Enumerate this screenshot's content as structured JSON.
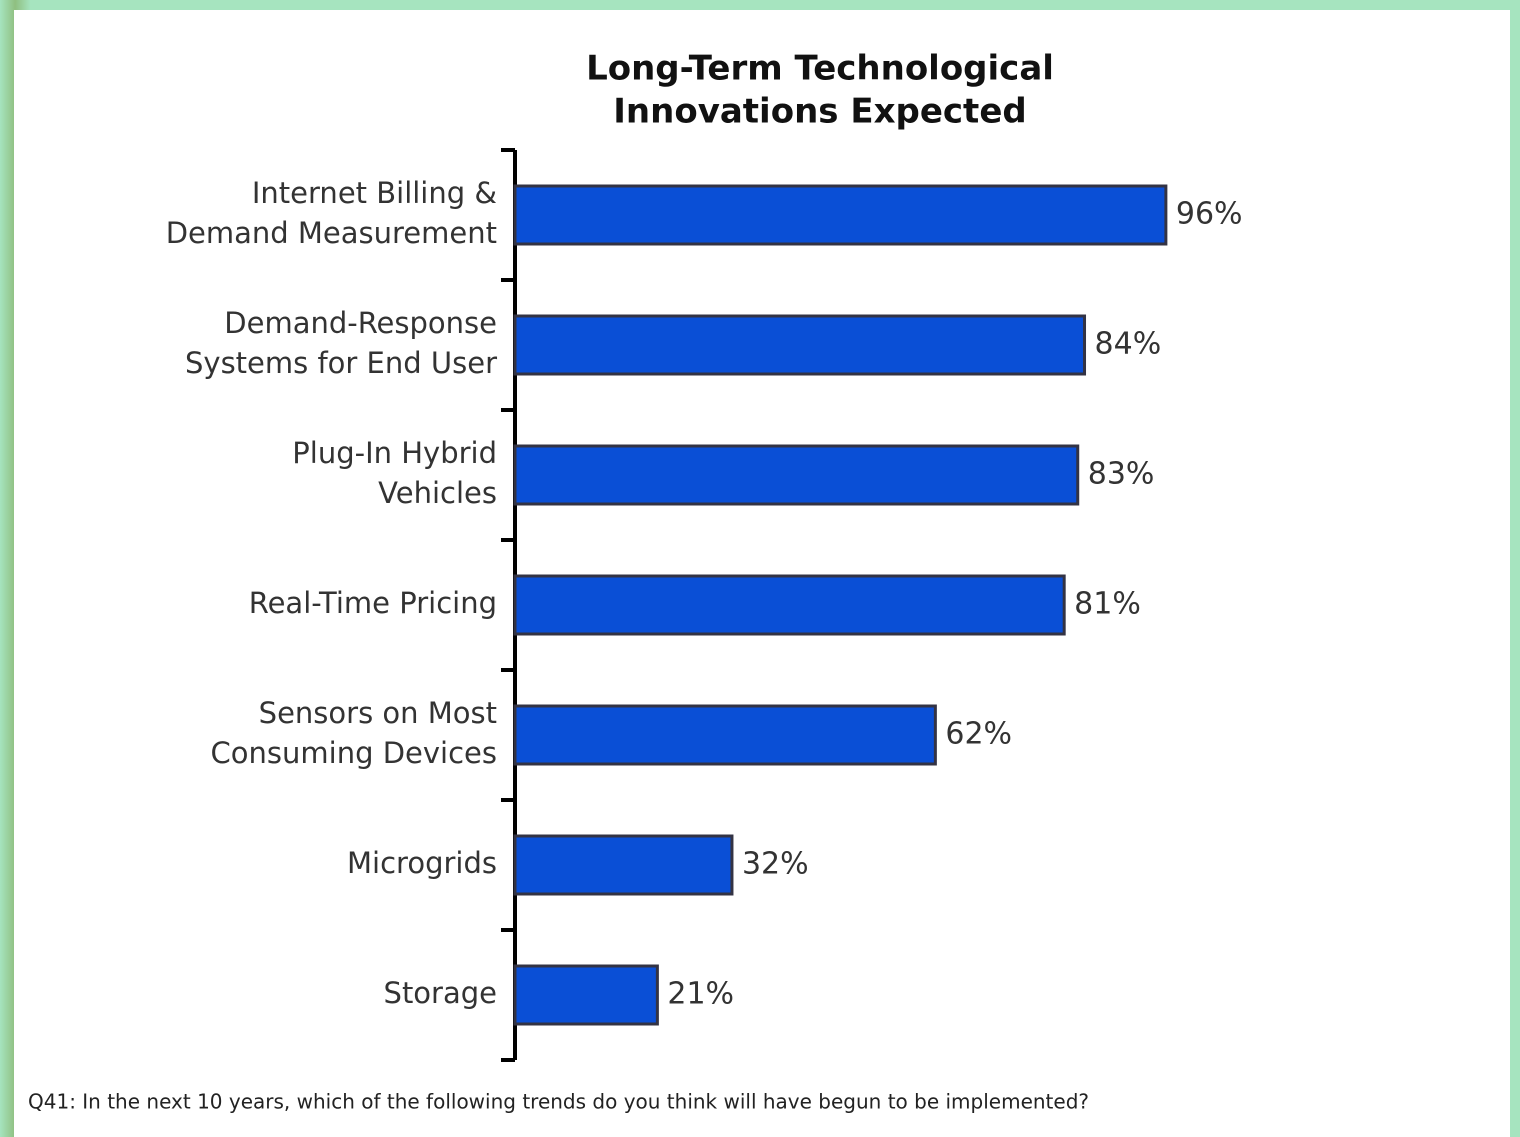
{
  "chart_data": {
    "type": "barh",
    "title": "Long-Term Technological\nInnovations Expected",
    "categories": [
      "Internet Billing &\nDemand Measurement",
      "Demand-Response\nSystems for End User",
      "Plug-In Hybrid\nVehicles",
      "Real-Time Pricing",
      "Sensors on Most\nConsuming Devices",
      "Microgrids",
      "Storage"
    ],
    "values": [
      96,
      84,
      83,
      81,
      62,
      32,
      21
    ],
    "value_labels": [
      "96%",
      "84%",
      "83%",
      "81%",
      "62%",
      "32%",
      "21%"
    ],
    "color": "#0a4fd6",
    "xlim": [
      0,
      100
    ],
    "note": "Q41: In the next 10 years, which of the following trends do you think will have begun to be implemented?"
  }
}
